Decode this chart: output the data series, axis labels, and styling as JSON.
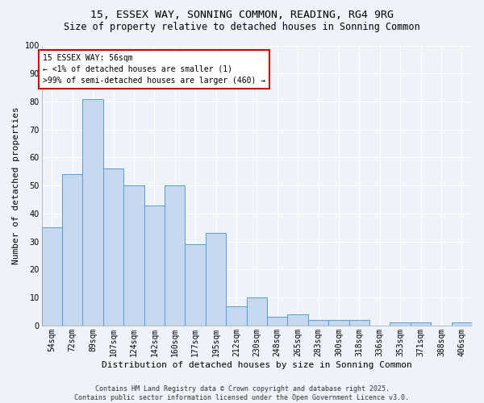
{
  "title": "15, ESSEX WAY, SONNING COMMON, READING, RG4 9RG",
  "subtitle": "Size of property relative to detached houses in Sonning Common",
  "xlabel": "Distribution of detached houses by size in Sonning Common",
  "ylabel": "Number of detached properties",
  "categories": [
    "54sqm",
    "72sqm",
    "89sqm",
    "107sqm",
    "124sqm",
    "142sqm",
    "160sqm",
    "177sqm",
    "195sqm",
    "212sqm",
    "230sqm",
    "248sqm",
    "265sqm",
    "283sqm",
    "300sqm",
    "318sqm",
    "336sqm",
    "353sqm",
    "371sqm",
    "388sqm",
    "406sqm"
  ],
  "values": [
    35,
    54,
    81,
    56,
    50,
    43,
    50,
    29,
    33,
    7,
    10,
    3,
    4,
    2,
    2,
    2,
    0,
    1,
    1,
    0,
    1
  ],
  "bar_color": "#c5d8f0",
  "bar_edge_color": "#5b9bd5",
  "background_color": "#eef2f9",
  "grid_color": "#ffffff",
  "annotation_text": "15 ESSEX WAY: 56sqm\n← <1% of detached houses are smaller (1)\n>99% of semi-detached houses are larger (460) →",
  "annotation_box_color": "#ffffff",
  "annotation_box_edge_color": "#cc0000",
  "ylim": [
    0,
    100
  ],
  "yticks": [
    0,
    10,
    20,
    30,
    40,
    50,
    60,
    70,
    80,
    90,
    100
  ],
  "footer": "Contains HM Land Registry data © Crown copyright and database right 2025.\nContains public sector information licensed under the Open Government Licence v3.0.",
  "title_fontsize": 9.5,
  "subtitle_fontsize": 8.5,
  "xlabel_fontsize": 8,
  "ylabel_fontsize": 8,
  "tick_fontsize": 7,
  "annotation_fontsize": 7,
  "footer_fontsize": 6
}
